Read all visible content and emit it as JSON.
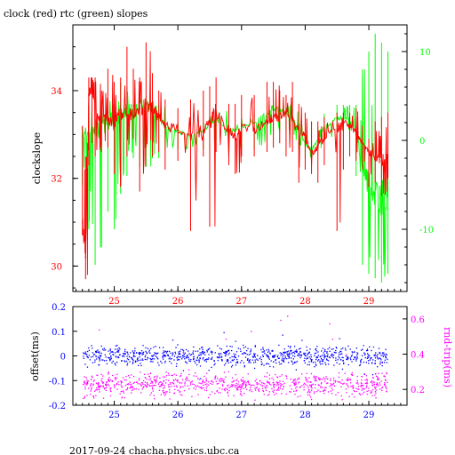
{
  "title": "clock (red) rtc (green) slopes",
  "footer": "2017-09-24 chacha.physics.ubc.ca",
  "colors": {
    "clock": "#ff0000",
    "rtc": "#00ff00",
    "offset": "#0000ff",
    "rndtrip": "#ff00ff",
    "axis": "#000000"
  },
  "chart_data": [
    {
      "type": "line",
      "title": "clock (red) rtc (green) slopes",
      "xlabel": "",
      "ylabel": "clockslope",
      "y2label": "",
      "xlim": [
        24.35,
        29.6
      ],
      "ylim": [
        29.42,
        35.5
      ],
      "y2lim": [
        -17,
        13
      ],
      "xticks": [
        25,
        26,
        27,
        28,
        29
      ],
      "yticks": [
        30,
        32,
        34
      ],
      "y2ticks": [
        -10,
        0,
        10
      ],
      "series": [
        {
          "name": "clock",
          "axis": "left",
          "color": "#ff0000",
          "x": [
            24.5,
            24.55,
            24.6,
            24.65,
            24.7,
            24.8,
            24.9,
            25.0,
            25.1,
            25.2,
            25.3,
            25.4,
            25.5,
            25.6,
            25.7,
            25.8,
            26.0,
            26.2,
            26.4,
            26.5,
            26.6,
            26.8,
            26.9,
            27.0,
            27.2,
            27.4,
            27.5,
            27.6,
            27.7,
            27.8,
            27.9,
            28.0,
            28.1,
            28.2,
            28.3,
            28.5,
            28.6,
            28.7,
            28.8,
            28.9,
            29.0,
            29.1,
            29.2,
            29.3
          ],
          "y": [
            31.0,
            30.2,
            33.9,
            34.1,
            33.6,
            33.3,
            33.4,
            33.2,
            33.5,
            33.6,
            33.4,
            33.6,
            33.7,
            33.6,
            33.4,
            33.2,
            33.1,
            32.9,
            33.1,
            33.3,
            33.5,
            33.1,
            32.9,
            33.2,
            33.1,
            33.3,
            33.4,
            33.4,
            33.5,
            33.3,
            33.1,
            32.9,
            32.6,
            32.7,
            32.9,
            33.2,
            33.3,
            33.2,
            33.0,
            32.8,
            32.6,
            32.5,
            32.4,
            32.5
          ],
          "spikes_min": [
            30.7,
            29.7,
            32.3,
            32.8,
            32.5,
            32.6,
            32.7,
            32.1,
            31.8,
            32.5,
            32.9,
            31.7,
            32.7,
            32.5,
            32.6,
            32.2,
            32.4,
            30.8,
            32.5,
            30.9,
            32.6,
            32.3,
            32.1,
            32.5,
            32.5,
            32.6,
            32.7,
            32.8,
            32.5,
            32.6,
            31.9,
            32.2,
            32.1,
            31.9,
            32.3,
            30.8,
            32.2,
            32.5,
            32.4,
            32.2,
            31.8,
            31.9,
            31.6,
            32.0
          ],
          "spikes_max": [
            33.2,
            32.5,
            34.3,
            34.3,
            34.3,
            34.0,
            34.5,
            34.2,
            34.3,
            35.0,
            34.5,
            34.3,
            35.1,
            34.4,
            34.0,
            33.8,
            33.6,
            33.8,
            34.0,
            34.1,
            34.3,
            33.7,
            33.7,
            33.9,
            33.9,
            34.2,
            34.2,
            34.0,
            33.9,
            34.2,
            33.7,
            33.5,
            33.3,
            33.3,
            33.4,
            33.5,
            33.5,
            33.5,
            33.6,
            33.2,
            32.9,
            33.3,
            33.4,
            33.5
          ]
        },
        {
          "name": "rtc",
          "axis": "right",
          "color": "#00ff00",
          "x": [
            24.5,
            24.6,
            24.7,
            24.8,
            24.9,
            25.0,
            25.1,
            25.2,
            25.3,
            25.4,
            25.5,
            25.6,
            25.7,
            25.8,
            26.0,
            26.2,
            26.4,
            26.5,
            26.6,
            26.8,
            27.0,
            27.2,
            27.4,
            27.5,
            27.6,
            27.7,
            27.8,
            27.9,
            28.0,
            28.1,
            28.2,
            28.3,
            28.5,
            28.6,
            28.7,
            28.8,
            28.9,
            29.0,
            29.1,
            29.2,
            29.3
          ],
          "y": [
            0.5,
            1.0,
            1.5,
            1.5,
            2.0,
            2.5,
            3.0,
            3.5,
            3.5,
            4.0,
            4.0,
            3.5,
            2.5,
            1.5,
            1.0,
            0.5,
            1.0,
            2.0,
            2.5,
            1.0,
            1.5,
            2.0,
            3.0,
            3.5,
            3.5,
            3.0,
            2.5,
            1.0,
            -0.5,
            -1.0,
            0.0,
            1.5,
            2.5,
            2.5,
            2.5,
            1.0,
            -3.0,
            -5.0,
            -6.0,
            -6.5,
            -5.5
          ],
          "spikes_min": [
            -5.0,
            -10.0,
            -14.0,
            -12.0,
            -8.0,
            -10.0,
            -6.0,
            -4.0,
            -2.0,
            -3.0,
            -3.0,
            -2.0,
            -2.0,
            -1.0,
            -1.0,
            -1.0,
            -1.0,
            -1.0,
            0.0,
            -1.0,
            -1.0,
            -1.0,
            0.0,
            1.0,
            1.0,
            1.0,
            0.0,
            -1.0,
            -2.0,
            -2.0,
            -1.0,
            0.0,
            1.0,
            1.0,
            1.0,
            -4.0,
            -14.0,
            -15.0,
            -15.5,
            -16.0,
            -15.0
          ],
          "spikes_max": [
            1.5,
            4.0,
            4.0,
            4.5,
            4.5,
            5.0,
            6.5,
            6.0,
            6.0,
            5.5,
            5.0,
            4.5,
            4.0,
            3.0,
            2.0,
            1.5,
            2.0,
            3.0,
            3.5,
            2.0,
            2.5,
            3.0,
            4.0,
            4.5,
            4.5,
            4.0,
            3.5,
            2.0,
            1.0,
            0.0,
            1.5,
            3.0,
            4.0,
            4.0,
            4.0,
            4.0,
            8.0,
            10.0,
            12.0,
            11.0,
            10.0
          ]
        }
      ]
    },
    {
      "type": "scatter",
      "xlabel": "",
      "ylabel": "offset(ms)",
      "y2label": "rnd-trip(ms)",
      "xlim": [
        24.35,
        29.6
      ],
      "ylim": [
        -0.2,
        0.2
      ],
      "y2lim": [
        0.11,
        0.67
      ],
      "xticks": [
        25,
        26,
        27,
        28,
        29
      ],
      "yticks": [
        -0.2,
        -0.1,
        0,
        0.1,
        0.2
      ],
      "y2ticks": [
        0.2,
        0.4,
        0.6
      ],
      "series": [
        {
          "name": "offset",
          "axis": "left",
          "color": "#0000ff",
          "x_range": [
            24.5,
            29.3
          ],
          "center": 0.0,
          "spread": 0.025,
          "outlier_max": 0.1,
          "outlier_min": -0.1
        },
        {
          "name": "rnd-trip",
          "axis": "right",
          "color": "#ff00ff",
          "x_range": [
            24.5,
            29.3
          ],
          "center": 0.23,
          "spread": 0.04,
          "outlier_max": 0.62,
          "outlier_min": 0.15
        }
      ]
    }
  ]
}
